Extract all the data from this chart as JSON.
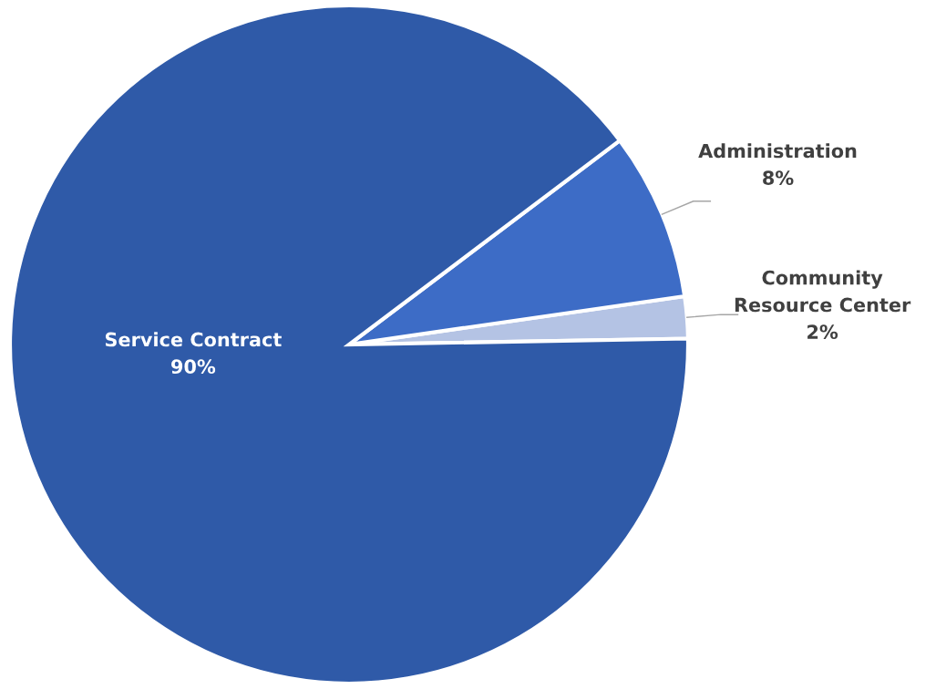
{
  "chart_data": {
    "type": "pie",
    "categories": [
      "Community\nResource Center",
      "Administration",
      "Service Contract"
    ],
    "values": [
      2,
      8,
      90
    ],
    "colors": [
      "#b4c3e4",
      "#3d6cc6",
      "#2f5aa8"
    ],
    "value_labels": [
      "2%",
      "8%",
      "90%"
    ],
    "legend": false
  }
}
